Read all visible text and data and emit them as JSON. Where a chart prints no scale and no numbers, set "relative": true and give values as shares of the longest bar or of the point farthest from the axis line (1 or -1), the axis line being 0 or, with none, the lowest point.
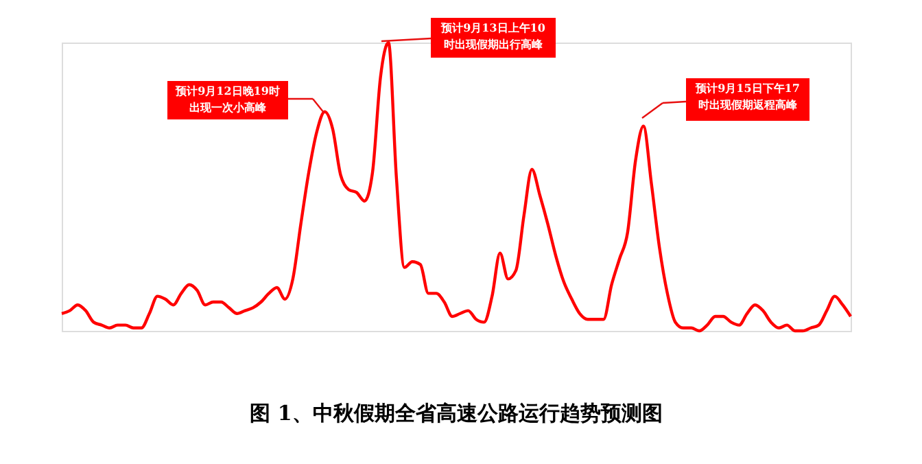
{
  "chart_data": {
    "type": "line",
    "relative": true,
    "title": "图 1、中秋假期全省高速公路运行趋势预测图",
    "categories": [
      null,
      null,
      null,
      null,
      null,
      null,
      null,
      null,
      null,
      null,
      null,
      null,
      null,
      null,
      null,
      null,
      null,
      null,
      null,
      null,
      null,
      null,
      null,
      null,
      null,
      null,
      null,
      null,
      null,
      null,
      null,
      null,
      null,
      null,
      null,
      null,
      null,
      null,
      null,
      null,
      null,
      null,
      null,
      null,
      null,
      null,
      null,
      null,
      null,
      null,
      null,
      null,
      null,
      null,
      null,
      null,
      null,
      null,
      null,
      null,
      null,
      null,
      null,
      null,
      null,
      null,
      null,
      null,
      null,
      null,
      null,
      null,
      null,
      null,
      null,
      null,
      null,
      null,
      null,
      null,
      null,
      null,
      null,
      null,
      null,
      null,
      null,
      null,
      null,
      null,
      null,
      null,
      null,
      null,
      null,
      null,
      null,
      null,
      null,
      null
    ],
    "series": [
      {
        "color": "#ff0000",
        "values": [
          0.06,
          0.07,
          0.09,
          0.07,
          0.03,
          0.02,
          0.01,
          0.02,
          0.02,
          0.01,
          0.01,
          0.06,
          0.12,
          0.11,
          0.09,
          0.13,
          0.16,
          0.14,
          0.09,
          0.1,
          0.1,
          0.08,
          0.06,
          0.07,
          0.08,
          0.1,
          0.13,
          0.15,
          0.11,
          0.18,
          0.37,
          0.55,
          0.69,
          0.76,
          0.7,
          0.54,
          0.49,
          0.48,
          0.45,
          0.55,
          0.88,
          1.0,
          0.53,
          0.22,
          0.24,
          0.23,
          0.13,
          0.13,
          0.1,
          0.05,
          0.06,
          0.07,
          0.04,
          0.03,
          0.12,
          0.27,
          0.18,
          0.21,
          0.4,
          0.56,
          0.47,
          0.37,
          0.26,
          0.17,
          0.11,
          0.06,
          0.04,
          0.04,
          0.04,
          0.16,
          0.25,
          0.34,
          0.59,
          0.71,
          0.51,
          0.29,
          0.13,
          0.03,
          0.01,
          0.01,
          0,
          0.02,
          0.05,
          0.05,
          0.03,
          0.02,
          0.06,
          0.09,
          0.07,
          0.03,
          0.01,
          0.02,
          0,
          0,
          0.01,
          0.02,
          0.07,
          0.12,
          0.09,
          0.05
        ]
      }
    ],
    "annotations": [
      "预计9月12日晚19时出现一次小高峰",
      "预计9月13日上午10时出现假期出行高峰",
      "预计9月15日下午17时出现假期返程高峰"
    ],
    "grid": false,
    "line_style": "solid",
    "marker": "none"
  }
}
